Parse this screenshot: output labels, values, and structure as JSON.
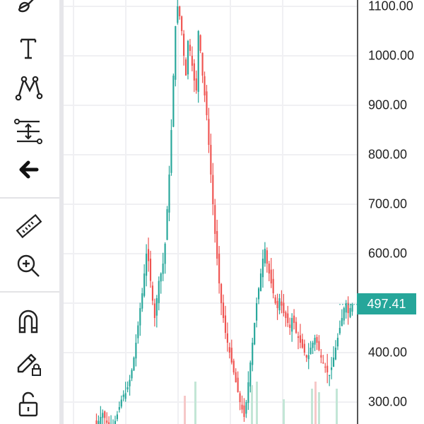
{
  "toolbar": {
    "tools": [
      {
        "icon": "brush-icon"
      },
      {
        "icon": "text-icon"
      },
      {
        "icon": "pattern-icon"
      },
      {
        "icon": "prediction-icon"
      },
      {
        "icon": "back-arrow-icon"
      },
      {
        "icon": "ruler-icon"
      },
      {
        "icon": "zoom-in-icon"
      },
      {
        "icon": "magnet-icon"
      },
      {
        "icon": "lock-drawing-icon"
      },
      {
        "icon": "lock-icon"
      }
    ]
  },
  "colors": {
    "up": "#26a69a",
    "down": "#ef5350",
    "volume_up": "#c3e6d6",
    "volume_down": "#f6c8c8",
    "grid": "#f0f0f3"
  },
  "chart_data": {
    "type": "candlestick",
    "y_ticks": [
      "1100.00",
      "1000.00",
      "900.00",
      "800.00",
      "700.00",
      "600.00",
      "400.00",
      "300.00"
    ],
    "y_range": [
      250,
      1110
    ],
    "last_price": "497.41",
    "series_close": [
      255,
      262,
      270,
      278,
      268,
      258,
      252,
      250,
      254,
      262,
      275,
      290,
      305,
      315,
      318,
      330,
      345,
      365,
      390,
      420,
      455,
      490,
      520,
      560,
      600,
      585,
      545,
      505,
      470,
      510,
      545,
      560,
      580,
      620,
      690,
      760,
      850,
      960,
      1060,
      1100,
      1080,
      1050,
      1000,
      960,
      1030,
      1010,
      980,
      950,
      930,
      1050,
      1010,
      960,
      920,
      880,
      820,
      760,
      700,
      640,
      590,
      540,
      500,
      470,
      440,
      420,
      400,
      380,
      360,
      340,
      320,
      300,
      285,
      270,
      300,
      340,
      380,
      420,
      460,
      500,
      530,
      560,
      590,
      610,
      580,
      560,
      540,
      520,
      500,
      490,
      510,
      495,
      480,
      470,
      460,
      450,
      470,
      460,
      440,
      430,
      420,
      410,
      400,
      390,
      395,
      410,
      420,
      430,
      420,
      405,
      390,
      380,
      370,
      360,
      355,
      370,
      390,
      410,
      430,
      450,
      470,
      490,
      500,
      480,
      490,
      497
    ]
  }
}
